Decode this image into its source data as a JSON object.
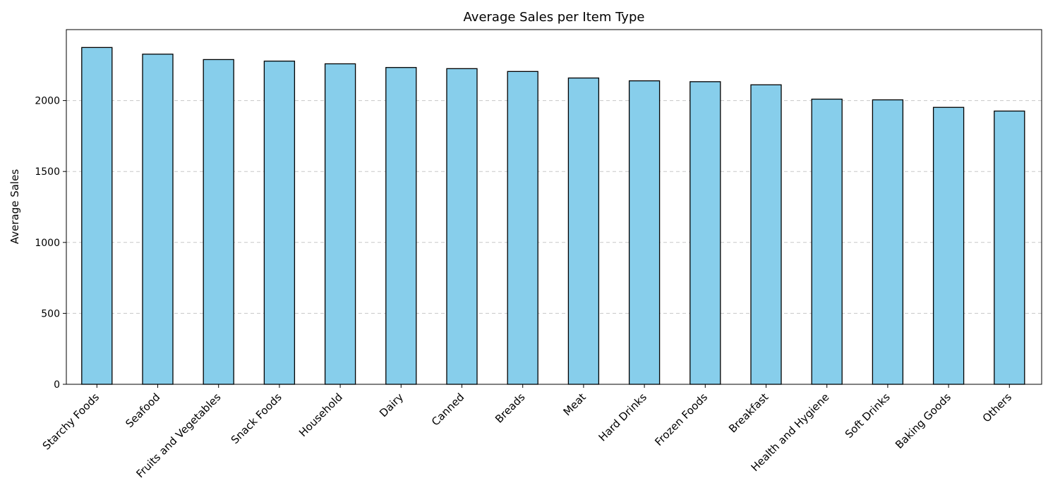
{
  "chart_data": {
    "type": "bar",
    "title": "Average Sales per Item Type",
    "xlabel": "",
    "ylabel": "Average Sales",
    "categories": [
      "Starchy Foods",
      "Seafood",
      "Fruits and Vegetables",
      "Snack Foods",
      "Household",
      "Dairy",
      "Canned",
      "Breads",
      "Meat",
      "Hard Drinks",
      "Frozen Foods",
      "Breakfast",
      "Health and Hygiene",
      "Soft Drinks",
      "Baking Goods",
      "Others"
    ],
    "values": [
      2374,
      2327,
      2289,
      2278,
      2259,
      2233,
      2225,
      2205,
      2159,
      2139,
      2133,
      2111,
      2010,
      2005,
      1952,
      1926
    ],
    "ylim": [
      0,
      2500
    ],
    "yticks": [
      0,
      500,
      1000,
      1500,
      2000
    ],
    "grid": "y-dashed",
    "legend": "none",
    "colors": {
      "bar_fill": "#87CEEB",
      "bar_edge": "#000000",
      "grid": "#c8c8c8",
      "axis": "#000000"
    }
  }
}
